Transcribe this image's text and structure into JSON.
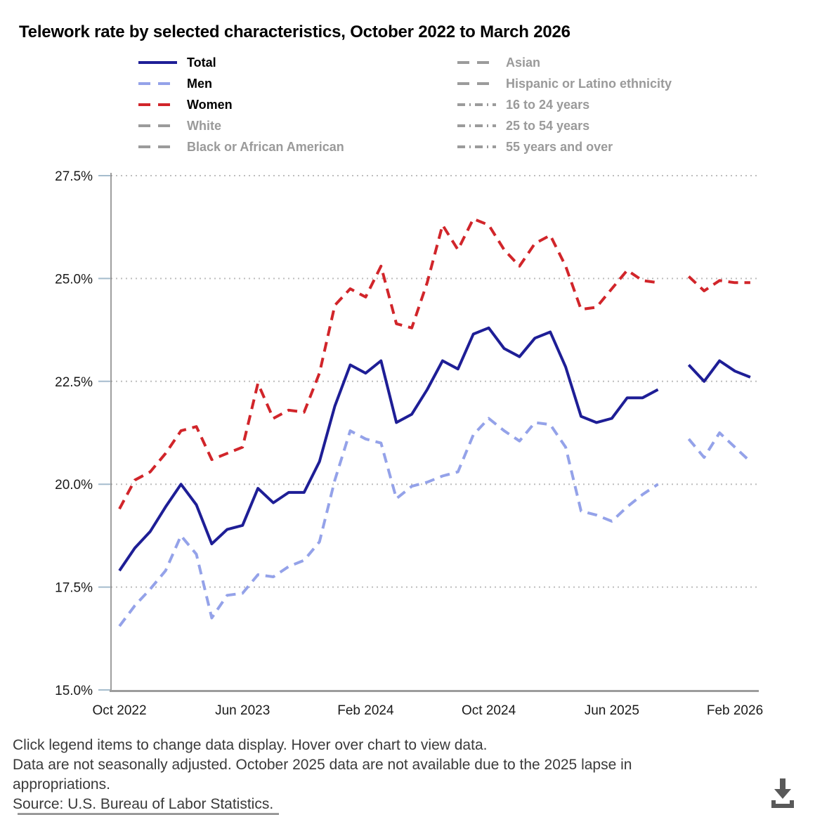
{
  "title": "Telework rate by selected characteristics, October 2022 to March 2026",
  "legend": {
    "hint": "Click legend items to change data display.",
    "columns": [
      {
        "items": [
          {
            "key": "total",
            "label": "Total",
            "color": "#1e1e96",
            "style": "solid",
            "active": true
          },
          {
            "key": "men",
            "label": "Men",
            "color": "#94a2e9",
            "style": "dash",
            "active": true
          },
          {
            "key": "women",
            "label": "Women",
            "color": "#d1252a",
            "style": "dash",
            "active": true
          },
          {
            "key": "white",
            "label": "White",
            "color": "#9b9b9b",
            "style": "dash",
            "active": false
          },
          {
            "key": "black-or-african-american",
            "label": "Black or African American",
            "color": "#9b9b9b",
            "style": "dash",
            "active": false
          }
        ]
      },
      {
        "items": [
          {
            "key": "asian",
            "label": "Asian",
            "color": "#9b9b9b",
            "style": "dash",
            "active": false
          },
          {
            "key": "hispanic-or-latino-ethnicity",
            "label": "Hispanic or Latino ethnicity",
            "color": "#9b9b9b",
            "style": "dash",
            "active": false
          },
          {
            "key": "16-to-24-years",
            "label": "16 to 24 years",
            "color": "#9b9b9b",
            "style": "dashdot",
            "active": false
          },
          {
            "key": "25-to-54-years",
            "label": "25 to 54 years",
            "color": "#9b9b9b",
            "style": "dashdot",
            "active": false
          },
          {
            "key": "55-years-and-over",
            "label": "55 years and over",
            "color": "#9b9b9b",
            "style": "dashdot",
            "active": false
          }
        ]
      }
    ]
  },
  "chart_data": {
    "type": "line",
    "title": "Telework rate by selected characteristics, October 2022 to March 2026",
    "xlabel": "",
    "ylabel": "",
    "ylim": [
      15,
      27.5
    ],
    "grid": "dotted horizontal gridlines",
    "legend_position": "top",
    "missing_month": "Oct 2025",
    "y_ticks": [
      {
        "value": 27.5,
        "label": "27.5%"
      },
      {
        "value": 25.0,
        "label": "25.0%"
      },
      {
        "value": 22.5,
        "label": "22.5%"
      },
      {
        "value": 20.0,
        "label": "20.0%"
      },
      {
        "value": 17.5,
        "label": "17.5%"
      },
      {
        "value": 15.0,
        "label": "15.0%"
      }
    ],
    "x_ticks": [
      {
        "index": 0,
        "label": "Oct 2022"
      },
      {
        "index": 8,
        "label": "Jun 2023"
      },
      {
        "index": 16,
        "label": "Feb 2024"
      },
      {
        "index": 24,
        "label": "Oct 2024"
      },
      {
        "index": 32,
        "label": "Jun 2025"
      },
      {
        "index": 40,
        "label": "Feb 2026"
      }
    ],
    "x": [
      "Oct 2022",
      "Nov 2022",
      "Dec 2022",
      "Jan 2023",
      "Feb 2023",
      "Mar 2023",
      "Apr 2023",
      "May 2023",
      "Jun 2023",
      "Jul 2023",
      "Aug 2023",
      "Sep 2023",
      "Oct 2023",
      "Nov 2023",
      "Dec 2023",
      "Jan 2024",
      "Feb 2024",
      "Mar 2024",
      "Apr 2024",
      "May 2024",
      "Jun 2024",
      "Jul 2024",
      "Aug 2024",
      "Sep 2024",
      "Oct 2024",
      "Nov 2024",
      "Dec 2024",
      "Jan 2025",
      "Feb 2025",
      "Mar 2025",
      "Apr 2025",
      "May 2025",
      "Jun 2025",
      "Jul 2025",
      "Aug 2025",
      "Sep 2025",
      "Oct 2025",
      "Nov 2025",
      "Dec 2025",
      "Jan 2026",
      "Feb 2026",
      "Mar 2026"
    ],
    "series": [
      {
        "name": "Total",
        "color": "#1e1e96",
        "dash": null,
        "values": [
          17.9,
          18.45,
          18.85,
          19.45,
          20.0,
          19.5,
          18.55,
          18.9,
          19.0,
          19.9,
          19.55,
          19.8,
          19.8,
          20.55,
          21.9,
          22.9,
          22.7,
          23.0,
          21.5,
          21.7,
          22.3,
          23.0,
          22.8,
          23.65,
          23.8,
          23.3,
          23.1,
          23.55,
          23.7,
          22.85,
          21.65,
          21.5,
          21.6,
          22.1,
          22.1,
          22.3,
          null,
          22.9,
          22.5,
          23.0,
          22.75,
          22.6
        ]
      },
      {
        "name": "Men",
        "color": "#94a2e9",
        "dash": [
          14,
          9
        ],
        "values": [
          16.55,
          17.05,
          17.45,
          17.9,
          18.75,
          18.3,
          16.75,
          17.3,
          17.35,
          17.8,
          17.75,
          18.0,
          18.15,
          18.6,
          20.1,
          21.3,
          21.1,
          21.0,
          19.65,
          19.95,
          20.05,
          20.2,
          20.3,
          21.2,
          21.6,
          21.3,
          21.05,
          21.5,
          21.45,
          20.9,
          19.35,
          19.25,
          19.1,
          19.45,
          19.75,
          20.0,
          null,
          21.1,
          20.65,
          21.25,
          20.9,
          20.55
        ]
      },
      {
        "name": "Women",
        "color": "#d1252a",
        "dash": [
          14,
          9
        ],
        "values": [
          19.4,
          20.1,
          20.3,
          20.75,
          21.3,
          21.4,
          20.6,
          20.75,
          20.9,
          22.45,
          21.6,
          21.8,
          21.75,
          22.7,
          24.35,
          24.75,
          24.55,
          25.3,
          23.9,
          23.8,
          24.9,
          26.3,
          25.7,
          26.45,
          26.3,
          25.7,
          25.3,
          25.85,
          26.05,
          25.3,
          24.25,
          24.3,
          24.75,
          25.2,
          24.95,
          24.9,
          null,
          25.05,
          24.7,
          24.95,
          24.9,
          24.9
        ]
      }
    ]
  },
  "footer": {
    "line1": "Click legend items to change data display. Hover over chart to view data.",
    "line2": "Data are not seasonally adjusted. October 2025 data are not available due to the 2025 lapse in appropriations.",
    "line3": "Source: U.S. Bureau of Labor Statistics."
  },
  "colors": {
    "gridline": "#bdbdbd",
    "axis_line": "#8a8a8a",
    "y_tick_mark": "#a5bccd",
    "axis_label": "#1a1a1a",
    "footer_text": "#3a3a3a",
    "inactive_legend": "#9a9a9a",
    "download_icon": "#595959"
  },
  "download": {
    "icon": "download-icon"
  }
}
